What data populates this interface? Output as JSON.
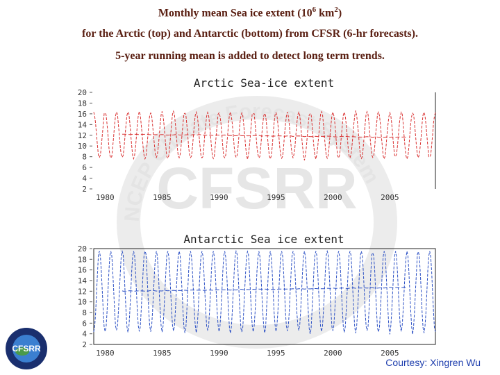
{
  "header": {
    "line1_prefix": "Monthly mean Sea ice extent (10",
    "line1_sup1": "6",
    "line1_mid": " km",
    "line1_sup2": "2",
    "line1_suffix": ")",
    "line2": "for the Arctic (top) and Antarctic (bottom) from CFSR (6-hr forecasts).",
    "line3": "5-year running mean is added to detect long term trends."
  },
  "watermark": {
    "text": "CFSRR",
    "ring_text": "NCEP Climate Forecast System"
  },
  "logo": {
    "text": "CFSRR"
  },
  "credit": "Courtesy: Xingren Wu",
  "colors": {
    "arctic": "#d93030",
    "antarctic": "#2a4fc4",
    "title": "#5a1f12",
    "credit": "#1f3fae"
  },
  "chart_data": [
    {
      "type": "line",
      "title": "Arctic Sea-ice extent",
      "x_ticks": [
        "1980",
        "1985",
        "1990",
        "1995",
        "2000",
        "2005"
      ],
      "y_ticks": [
        "20",
        "18",
        "16",
        "14",
        "12",
        "10",
        "8",
        "6",
        "4",
        "2"
      ],
      "ylim": [
        2,
        20
      ],
      "xlim": [
        1979,
        2009
      ],
      "series": [
        {
          "name": "Monthly mean",
          "style": "dashed",
          "min": 7,
          "max": 16,
          "mean": 12,
          "period_years": 1
        },
        {
          "name": "5-year running mean",
          "style": "dashed",
          "values_start": 12.2,
          "values_end": 11.6
        }
      ]
    },
    {
      "type": "line",
      "title": "Antarctic Sea ice extent",
      "x_ticks": [
        "1980",
        "1985",
        "1990",
        "1995",
        "2000",
        "2005"
      ],
      "y_ticks": [
        "20",
        "18",
        "16",
        "14",
        "12",
        "10",
        "8",
        "6",
        "4",
        "2"
      ],
      "ylim": [
        2,
        20
      ],
      "xlim": [
        1979,
        2009
      ],
      "series": [
        {
          "name": "Monthly mean",
          "style": "dashed",
          "min": 3,
          "max": 19,
          "mean": 12,
          "period_years": 1
        },
        {
          "name": "5-year running mean",
          "style": "dashed",
          "values_start": 12.0,
          "values_end": 12.7
        }
      ]
    }
  ]
}
